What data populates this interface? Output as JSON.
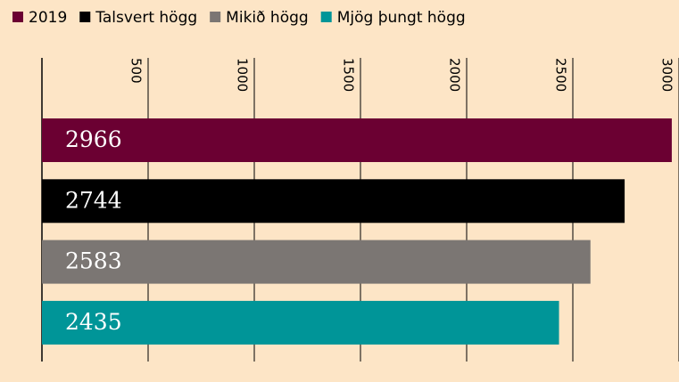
{
  "chart_data": {
    "type": "bar",
    "orientation": "horizontal",
    "categories": [
      "2019",
      "Talsvert högg",
      "Mikið högg",
      "Mjög þungt högg"
    ],
    "values": [
      2966,
      2744,
      2583,
      2435
    ],
    "colors": [
      "#6b0032",
      "#000000",
      "#7b7673",
      "#009598"
    ],
    "xlim": [
      0,
      3000
    ],
    "xticks": [
      500,
      1000,
      1500,
      2000,
      2500,
      3000
    ],
    "grid": true
  }
}
